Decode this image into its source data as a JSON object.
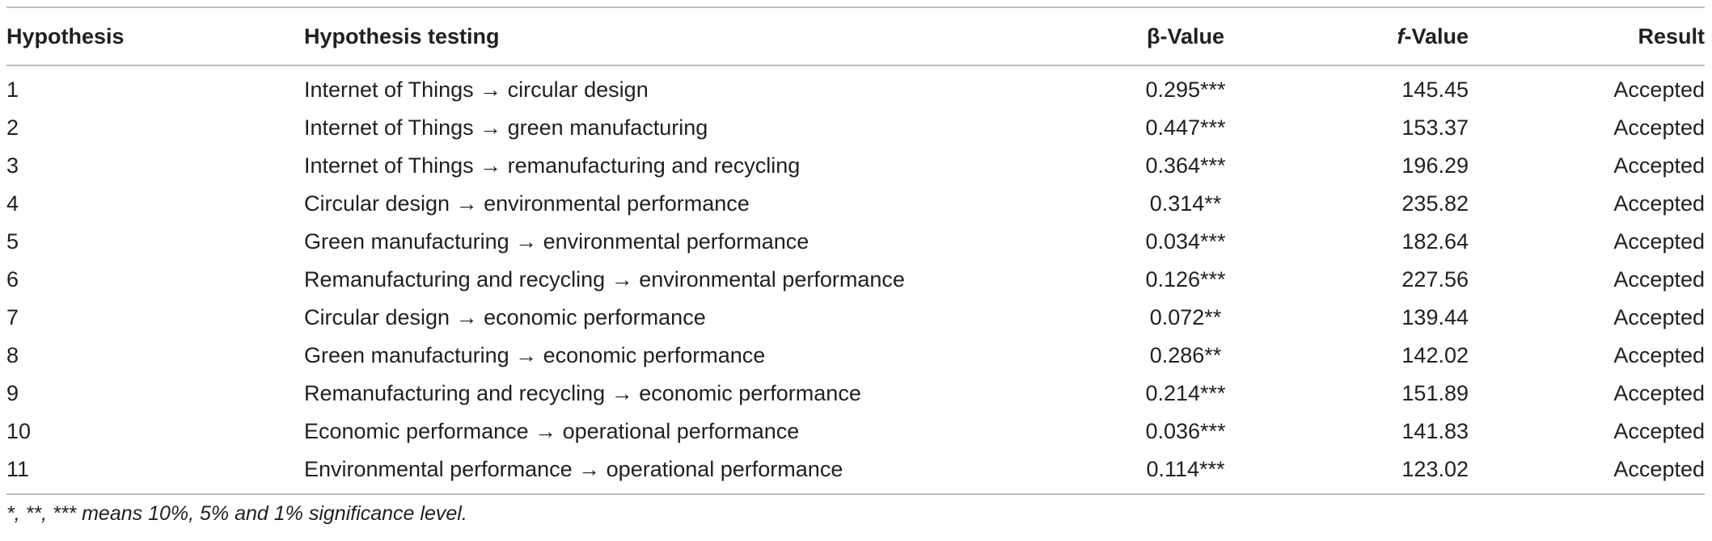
{
  "table": {
    "headers": {
      "hypothesis": "Hypothesis",
      "testing": "Hypothesis testing",
      "beta": "β-Value",
      "f_prefix": "f",
      "f_suffix": "-Value",
      "result": "Result"
    },
    "rows": [
      {
        "id": "1",
        "testing": "Internet of Things → circular design",
        "beta": "0.295***",
        "f": "145.45",
        "result": "Accepted"
      },
      {
        "id": "2",
        "testing": "Internet of Things → green manufacturing",
        "beta": "0.447***",
        "f": "153.37",
        "result": "Accepted"
      },
      {
        "id": "3",
        "testing": "Internet of Things → remanufacturing and recycling",
        "beta": "0.364***",
        "f": "196.29",
        "result": "Accepted"
      },
      {
        "id": "4",
        "testing": "Circular design → environmental performance",
        "beta": "0.314**",
        "f": "235.82",
        "result": "Accepted"
      },
      {
        "id": "5",
        "testing": "Green manufacturing → environmental performance",
        "beta": "0.034***",
        "f": "182.64",
        "result": "Accepted"
      },
      {
        "id": "6",
        "testing": "Remanufacturing and recycling → environmental performance",
        "beta": "0.126***",
        "f": "227.56",
        "result": "Accepted"
      },
      {
        "id": "7",
        "testing": "Circular design → economic performance",
        "beta": "0.072**",
        "f": "139.44",
        "result": "Accepted"
      },
      {
        "id": "8",
        "testing": "Green manufacturing → economic performance",
        "beta": "0.286**",
        "f": "142.02",
        "result": "Accepted"
      },
      {
        "id": "9",
        "testing": "Remanufacturing and recycling → economic performance",
        "beta": "0.214***",
        "f": "151.89",
        "result": "Accepted"
      },
      {
        "id": "10",
        "testing": "Economic performance → operational performance",
        "beta": "0.036***",
        "f": "141.83",
        "result": "Accepted"
      },
      {
        "id": "11",
        "testing": "Environmental performance → operational performance",
        "beta": "0.114***",
        "f": "123.02",
        "result": "Accepted"
      }
    ]
  },
  "footnote": "*, **, *** means 10%, 5% and 1% significance level."
}
